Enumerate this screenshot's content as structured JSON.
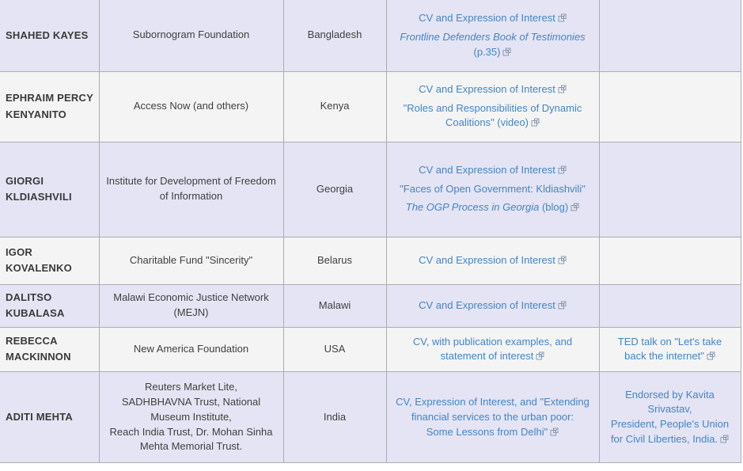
{
  "colors": {
    "link": "#4285c5",
    "row_odd": "#e4e4f4",
    "row_even": "#f4f4f5",
    "border": "#acacb2",
    "external_icon": "#8a9aad",
    "name_text": "#3a3a3a",
    "body_text": "#404040"
  },
  "table": {
    "columns": [
      "name",
      "organization",
      "country",
      "links",
      "endorsements"
    ],
    "rows": [
      {
        "name": "SHAHED KAYES",
        "organization": "Subornogram Foundation",
        "country": "Bangladesh",
        "links": [
          {
            "runs": [
              {
                "t": "CV and Expression of Interest",
                "i": false
              }
            ],
            "ext": true
          },
          {
            "runs": [
              {
                "t": "Frontline Defenders Book of Testimonies",
                "i": true
              },
              {
                "t": " (p.35)",
                "i": false
              }
            ],
            "ext": true
          }
        ],
        "endorsements": []
      },
      {
        "name": "EPHRAIM PERCY KENYANITO",
        "organization": "Access Now (and others)",
        "country": "Kenya",
        "links": [
          {
            "runs": [
              {
                "t": "CV and Expression of Interest",
                "i": false
              }
            ],
            "ext": true
          },
          {
            "runs": [
              {
                "t": "\"Roles and Responsibilities of Dynamic Coalitions\" (video)",
                "i": false
              }
            ],
            "ext": true
          }
        ],
        "endorsements": []
      },
      {
        "name": "GIORGI KLDIASHVILI",
        "organization": "Institute for Development of Freedom of Information",
        "country": "Georgia",
        "links": [
          {
            "runs": [
              {
                "t": "CV and Expression of Interest",
                "i": false
              }
            ],
            "ext": true
          },
          {
            "runs": [
              {
                "t": "\"Faces of Open Government: Kldiashvili\"",
                "i": false
              }
            ],
            "ext": false
          },
          {
            "runs": [
              {
                "t": "The OGP Process in Georgia",
                "i": true
              },
              {
                "t": " (blog)",
                "i": false
              }
            ],
            "ext": true
          }
        ],
        "endorsements": []
      },
      {
        "name": "IGOR KOVALENKO",
        "organization": "Charitable Fund \"Sincerity\"",
        "country": "Belarus",
        "links": [
          {
            "runs": [
              {
                "t": "CV and Expression of Interest",
                "i": false
              }
            ],
            "ext": true
          }
        ],
        "endorsements": []
      },
      {
        "name": "DALITSO KUBALASA",
        "organization": "Malawi Economic Justice Network (MEJN)",
        "country": "Malawi",
        "links": [
          {
            "runs": [
              {
                "t": "CV and Expression of Interest",
                "i": false
              }
            ],
            "ext": true
          }
        ],
        "endorsements": []
      },
      {
        "name": "REBECCA MACKINNON",
        "organization": "New America Foundation",
        "country": "USA",
        "links": [
          {
            "runs": [
              {
                "t": "CV, with publication examples, and statement of interest",
                "i": false
              }
            ],
            "ext": true
          }
        ],
        "endorsements": [
          {
            "runs": [
              {
                "t": "TED talk on \"Let's take back the internet\"",
                "i": false
              }
            ],
            "ext": true
          }
        ]
      },
      {
        "name": "ADITI MEHTA",
        "organization": "Reuters Market Lite,\nSADHBHAVNA Trust, National Museum Institute,\nReach India Trust, Dr. Mohan Sinha Mehta Memorial Trust.",
        "country": "India",
        "links": [
          {
            "runs": [
              {
                "t": "CV, Expression of Interest, and \"Extending financial services to the urban poor:\nSome Lessons from Delhi\"",
                "i": false
              }
            ],
            "ext": true
          }
        ],
        "endorsements": [
          {
            "runs": [
              {
                "t": "Endorsed by Kavita Srivastav,\nPresident, People's Union for Civil Liberties, India.",
                "i": false
              }
            ],
            "ext": true
          }
        ]
      }
    ]
  }
}
